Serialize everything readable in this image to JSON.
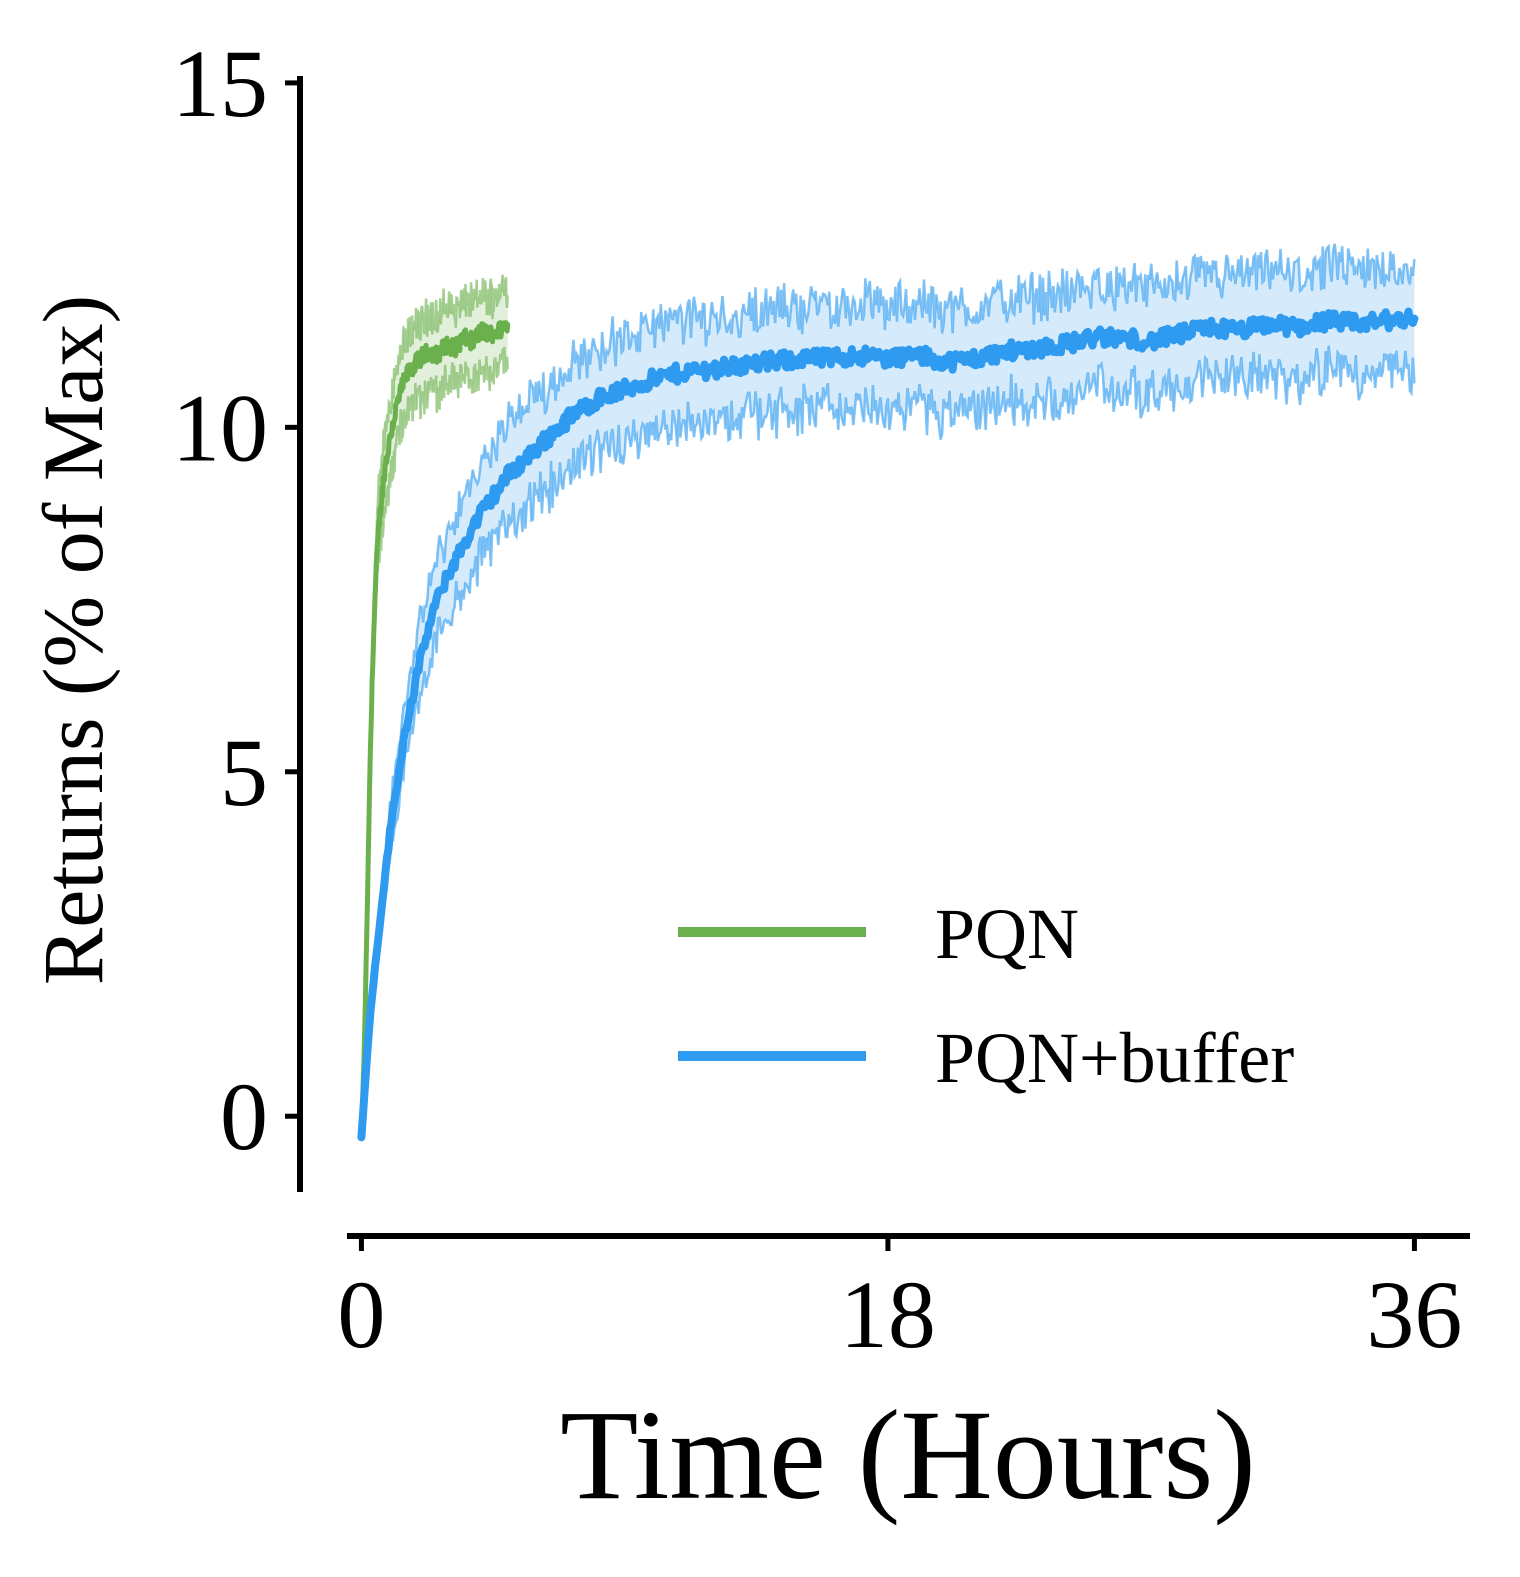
{
  "chart_data": {
    "type": "line",
    "title": "",
    "xlabel": "Time (Hours)",
    "ylabel": "Returns (% of Max)",
    "xlim": [
      -2.1,
      37.9
    ],
    "ylim": [
      -1.1,
      15.1
    ],
    "xticks": [
      0,
      18,
      36
    ],
    "yticks": [
      0,
      5,
      10,
      15
    ],
    "grid": false,
    "legend_position": "bottom-right",
    "series": [
      {
        "name": "PQN",
        "color": "#6ab04c",
        "x": [
          0,
          0.1,
          0.2,
          0.3,
          0.4,
          0.5,
          0.6,
          0.8,
          1.0,
          1.2,
          1.4,
          1.6,
          1.8,
          2.0,
          2.3,
          2.6,
          2.9,
          3.2,
          3.5,
          3.8,
          4.1,
          4.4,
          4.7,
          5.0
        ],
        "values": [
          -0.3,
          1.0,
          3.0,
          5.2,
          6.8,
          7.9,
          8.6,
          9.4,
          9.9,
          10.3,
          10.6,
          10.8,
          10.9,
          11.0,
          11.1,
          11.05,
          11.2,
          11.15,
          11.3,
          11.25,
          11.4,
          11.35,
          11.4,
          11.5
        ],
        "band": 0.55
      },
      {
        "name": "PQN+buffer",
        "color": "#2e9bf0",
        "x": [
          0,
          0.3,
          0.6,
          1.0,
          1.5,
          2.0,
          2.5,
          3.0,
          3.5,
          4.0,
          4.5,
          5.0,
          6.0,
          7.0,
          8.0,
          9.0,
          10.0,
          11.0,
          12.0,
          13.0,
          14.0,
          15.0,
          16.0,
          17.0,
          18.0,
          19.0,
          20.0,
          21.0,
          22.0,
          23.0,
          24.0,
          25.0,
          26.0,
          27.0,
          28.0,
          29.0,
          30.0,
          31.0,
          32.0,
          33.0,
          34.0,
          35.0,
          36.0
        ],
        "values": [
          -0.3,
          1.5,
          2.7,
          4.2,
          5.6,
          6.6,
          7.4,
          7.9,
          8.3,
          8.7,
          9.0,
          9.3,
          9.7,
          10.1,
          10.4,
          10.55,
          10.7,
          10.8,
          10.85,
          10.9,
          10.95,
          11.0,
          11.0,
          11.05,
          11.0,
          11.05,
          10.95,
          11.0,
          11.1,
          11.15,
          11.2,
          11.3,
          11.3,
          11.25,
          11.35,
          11.45,
          11.4,
          11.5,
          11.45,
          11.55,
          11.5,
          11.55,
          11.6
        ],
        "band": 0.75
      }
    ]
  }
}
